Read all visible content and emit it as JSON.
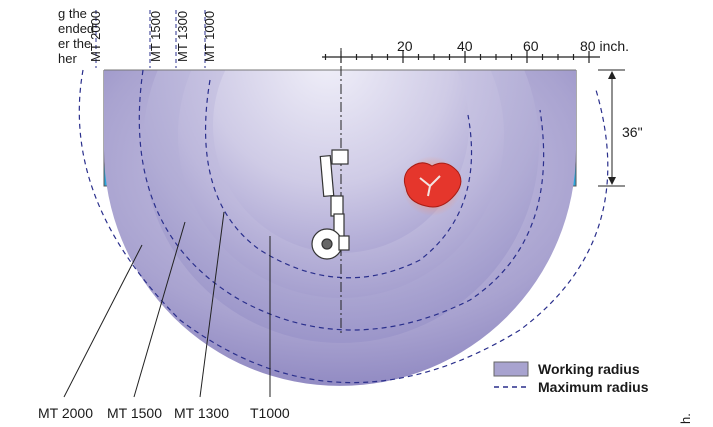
{
  "intro_text": [
    "g the",
    "ended",
    "er the",
    "her"
  ],
  "models_top": [
    "MT 2000",
    "MT 1500",
    "MT 1300",
    "MT 1000"
  ],
  "models_bottom": [
    "MT 2000",
    "MT 1500",
    "MT 1300",
    "T1000"
  ],
  "scale": {
    "ticks": [
      "20",
      "40",
      "60"
    ],
    "last_tick": "80 inch."
  },
  "dimension": {
    "label": "36\""
  },
  "legend": {
    "working": "Working radius",
    "maximum": "Maximum radius"
  },
  "corner_text": "h.",
  "colors": {
    "base_blue": "#2aa6dc",
    "working_area": "#a8a3cf",
    "working_area_dark": "#8a84bf",
    "dashed_line": "#2a2f8c",
    "meat_red": "#e5362c"
  }
}
